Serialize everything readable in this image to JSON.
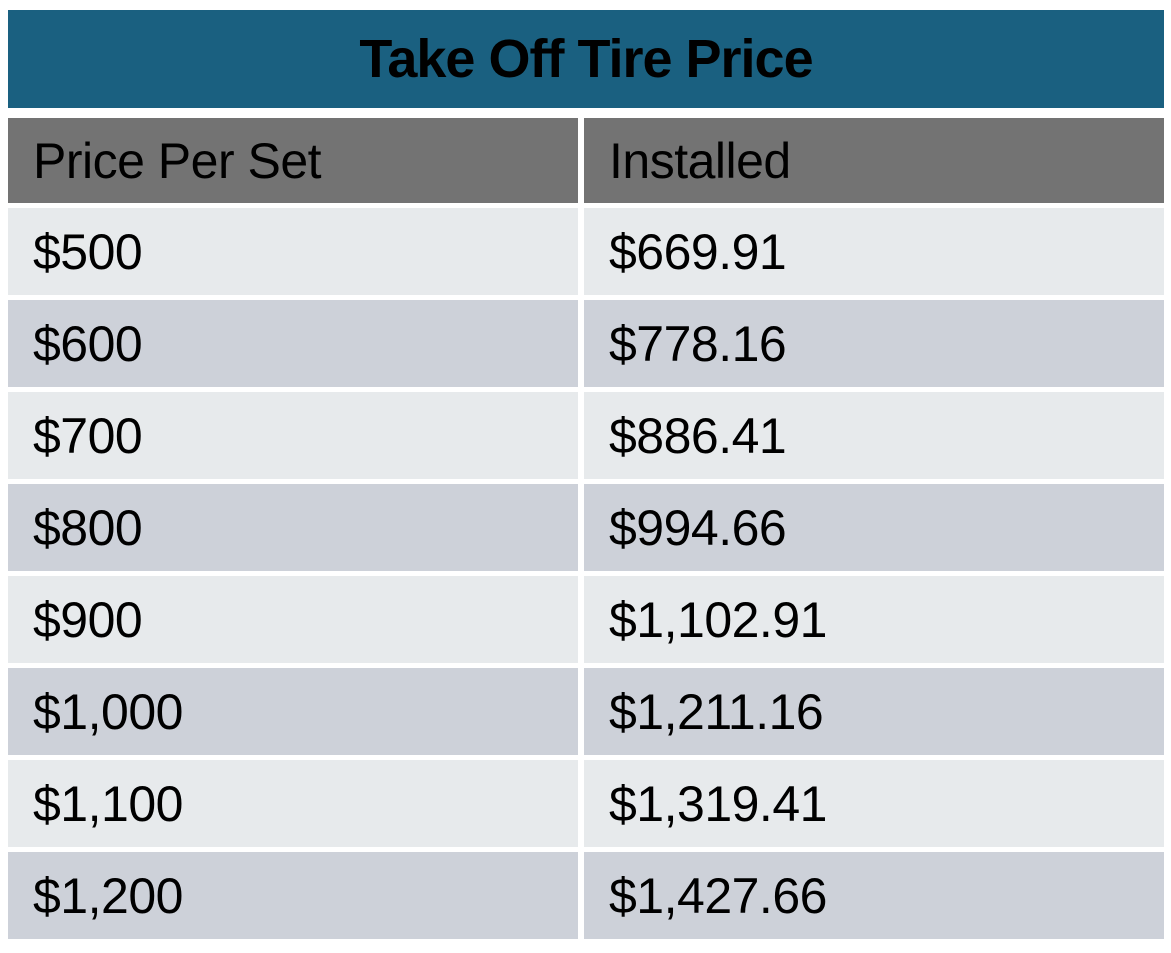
{
  "title": "Take Off Tire Price",
  "table": {
    "columns": [
      "Price Per Set",
      "Installed"
    ],
    "rows": [
      {
        "price_per_set": "$500",
        "installed": "$669.91"
      },
      {
        "price_per_set": "$600",
        "installed": "$778.16"
      },
      {
        "price_per_set": "$700",
        "installed": "$886.41"
      },
      {
        "price_per_set": "$800",
        "installed": "$994.66"
      },
      {
        "price_per_set": "$900",
        "installed": "$1,102.91"
      },
      {
        "price_per_set": "$1,000",
        "installed": "$1,211.16"
      },
      {
        "price_per_set": "$1,100",
        "installed": "$1,319.41"
      },
      {
        "price_per_set": "$1,200",
        "installed": "$1,427.66"
      }
    ]
  },
  "colors": {
    "title_bg": "#1A6080",
    "header_bg": "#737373",
    "row_light": "#E7EAEC",
    "row_dark": "#CDD1D9",
    "text": "#000000",
    "background": "#FFFFFF"
  },
  "chart_data": {
    "type": "table",
    "title": "Take Off Tire Price",
    "columns": [
      "Price Per Set",
      "Installed"
    ],
    "rows": [
      [
        "$500",
        "$669.91"
      ],
      [
        "$600",
        "$778.16"
      ],
      [
        "$700",
        "$886.41"
      ],
      [
        "$800",
        "$994.66"
      ],
      [
        "$900",
        "$1,102.91"
      ],
      [
        "$1,000",
        "$1,211.16"
      ],
      [
        "$1,100",
        "$1,319.41"
      ],
      [
        "$1,200",
        "$1,427.66"
      ]
    ]
  }
}
